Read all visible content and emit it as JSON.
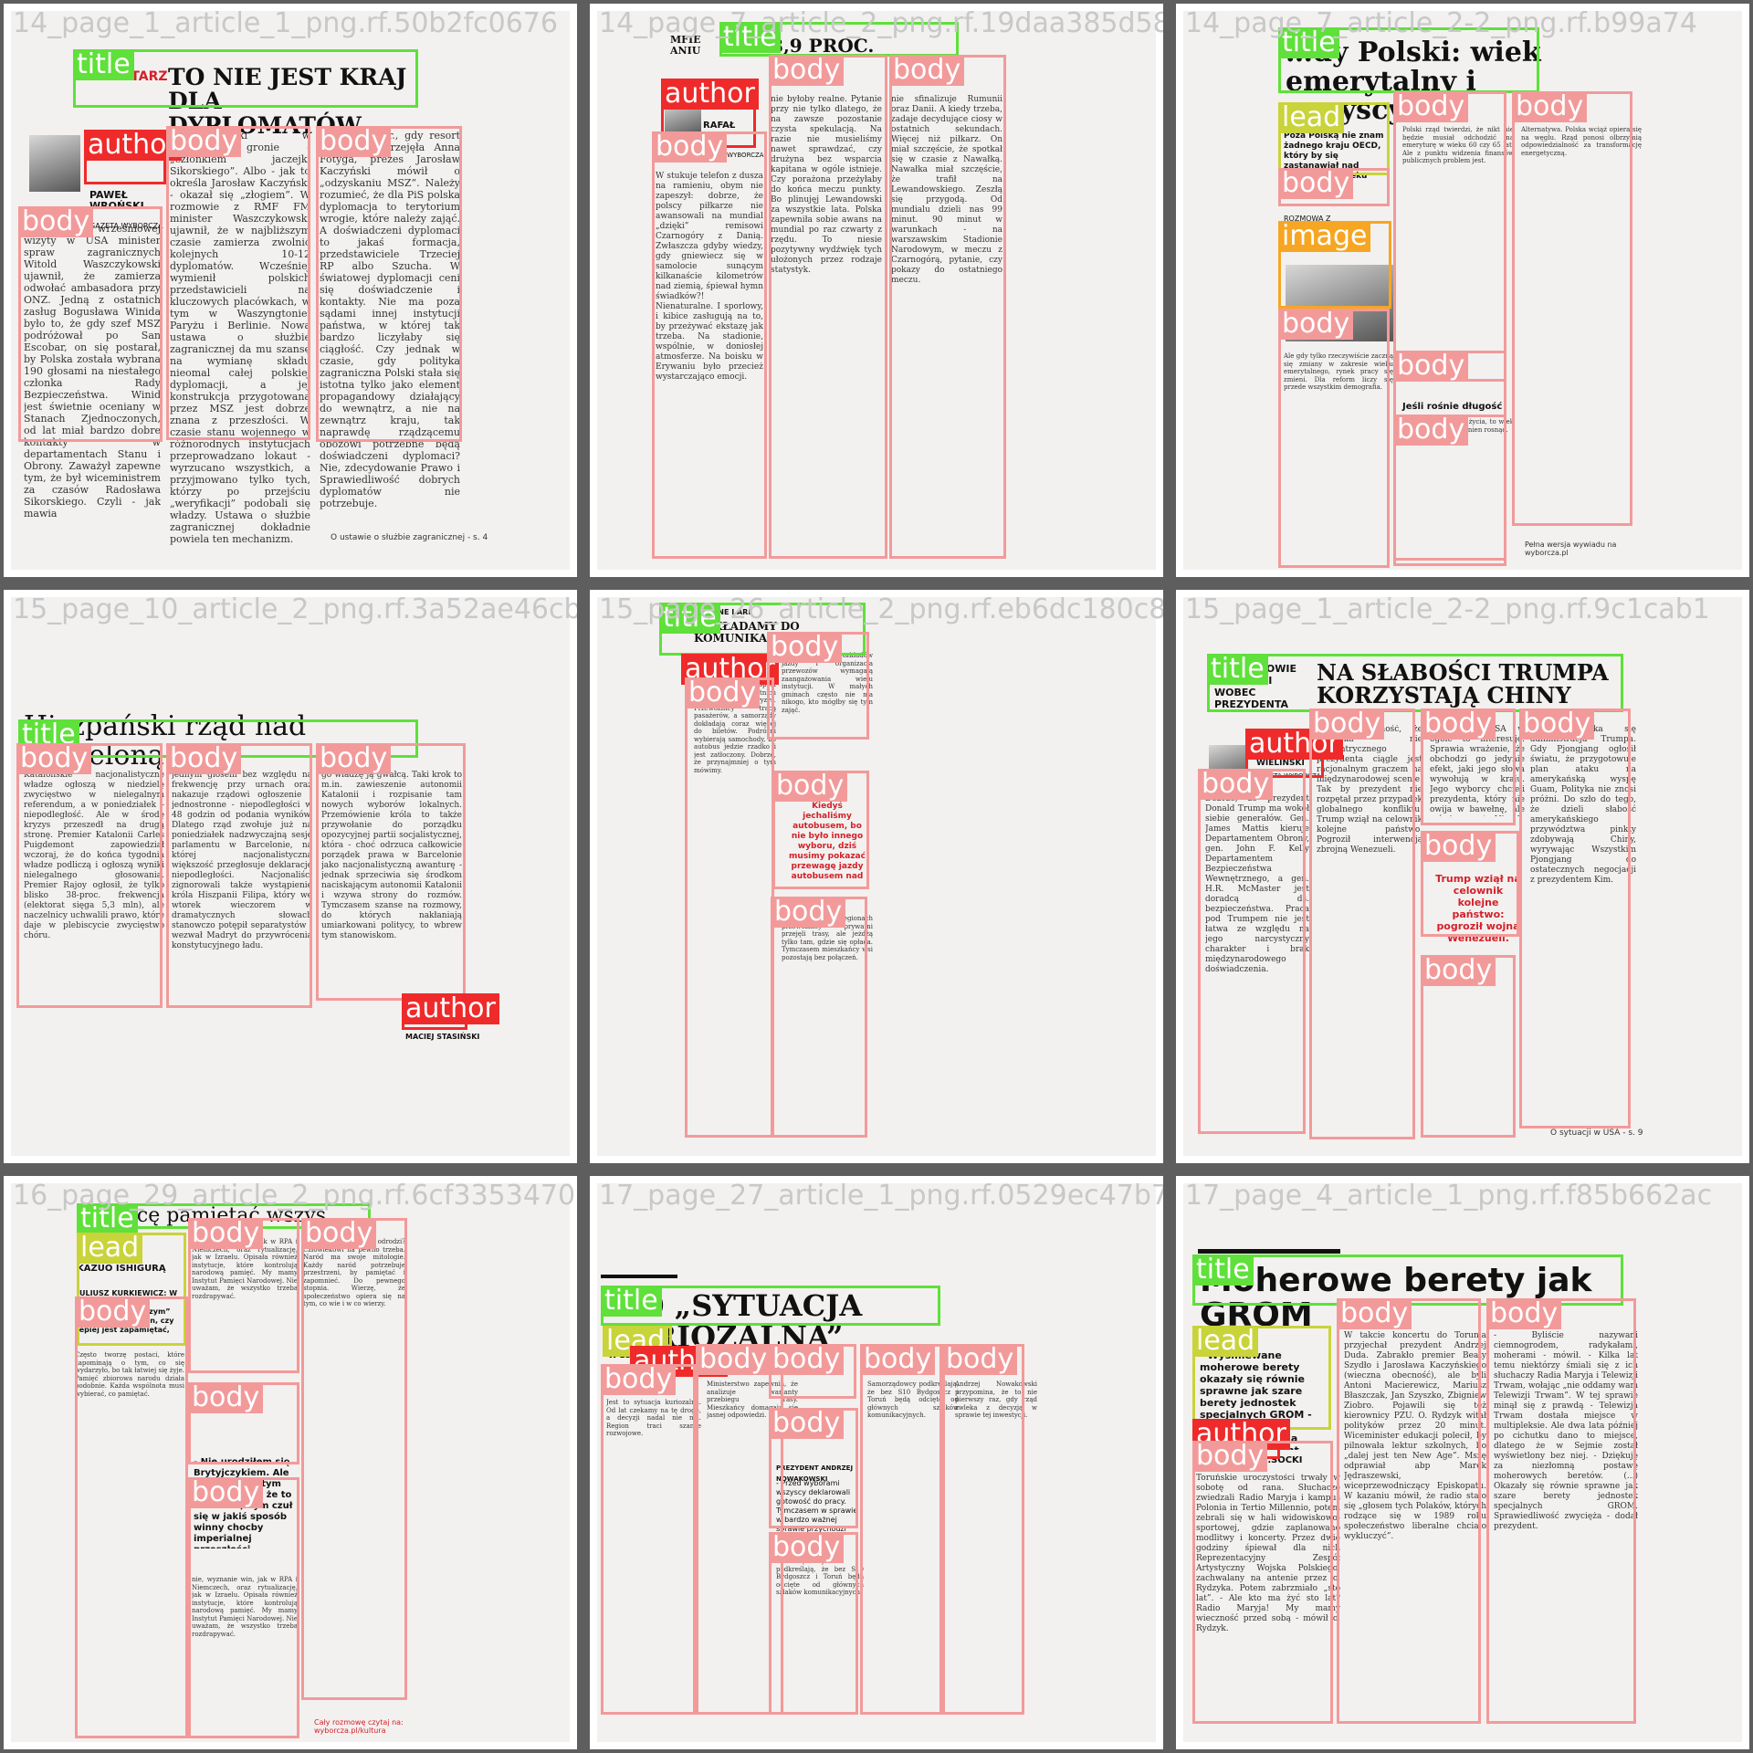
{
  "tiles": [
    {
      "label": "14_page_1_article_1_png.rf.50b2fc0676",
      "kicker": "KOMENTARZ",
      "headline": "TO NIE JEST KRAJ DLA DYPLOMATÓW",
      "author": "PAWEŁ WROŃSKI",
      "author_org": "GAZETA WYBORCZA",
      "body": [
        "W trakcie wrześniowej wizyty w USA minister spraw zagranicznych Witold Waszczykowski ujawnił, że zamierza odwołać ambasadora przy ONZ. Jedną z ostatnich zasług Bogusława Winida było to, że gdy szef MSZ podróżował po San Escobar, on się postarał, by Polska została wybrana 190 głosami na niestałego członka Rady Bezpieczeństwa. Winid jest świetnie oceniany w Stanach Zjednoczonych, od lat miał bardzo dobre kontakty w departamentach Stanu i Obrony. Zaważył zapewne tym, że był wiceministrem za czasów Radosława Sikorskiego. Czyli - jak mawia",
        "Waszczykowski w zaufanym gronie - „członkiem jaczejki Sikorskiego”. Albo - jak to określa Jarosław Kaczyński - okazał się „złogiem”. W rozmowie z RMF FM minister Waszczykowski ujawnił, że w najbliższym czasie zamierza zwolnić kolejnych 10-12 dyplomatów. Wcześniej wymienił polskich przedstawicieli na kluczowych placówkach, w tym w Waszyngtonie, Paryżu i Berlinie. Nowa ustawa o służbie zagranicznej da mu szansę na wymianę składu nieomal całej polskiej dyplomacji, a jej konstrukcja przygotowana przez MSZ jest dobrze znana z przeszłości. W czasie stanu wojennego w różnorodnych instytucjach przeprowadzano lokaut - wyrzucano wszystkich, a przyjmowano tylko tych, którzy po przejściu „weryfikacji” podobali się władzy. Ustawa o służbie zagranicznej dokładnie powiela ten mechanizm.",
        "Już w 2006 r., gdy resort dyplomacji przejęła Anna Fotyga, prezes Jarosław Kaczyński mówił o „odzyskaniu MSZ”. Należy rozumieć, że dla PiS polska dyplomacja to terytorium wrogie, które należy zająć. A doświadczeni dyplomaci to jakaś formacja, przedstawiciele Trzeciej RP albo Szucha. W światowej dyplomacji ceni się doświadczenie i kontakty. Nie ma poza sądami innej instytucji państwa, w której tak bardzo liczyłaby się ciągłość. Czy jednak w czasie, gdy polityka zagraniczna Polski stała się istotna tylko jako element propagandowy działający do wewnątrz, a nie na zewnątrz kraju, tak naprawdę rządzącemu obozowi potrzebne będą doświadczeni dyplomaci? Nie, zdecydowanie Prawo i Sprawiedliwość dobrych dyplomatów nie potrzebuje."
      ],
      "footer": "O ustawie o służbie zagranicznej - s. 4"
    },
    {
      "label": "14_page_7_article_2_png.rf.19daa385d58",
      "headline": "98,9 PROC.",
      "headline2": "MFIE ANIU",
      "author": "RAFAŁ TEC",
      "author_org": "GAZETA WYBORCZA",
      "body": [
        "W stukuje telefon z dusza na ramieniu, obym nie zapeszył: dobrze, że polscy piłkarze nie awansowali na mundial „dzięki” remisowi Czarnogóry z Danią. Zwłaszcza gdyby wiedzy, gdy gniewiecz się w samolocie sunącym kilkanaście kilometrów nad ziemią, śpiewał hymn świadków?! Nienaturalne. I sporlowy, i kibice zasługują na to, by przeżywać ekstazę jak trzeba. Na stadionie, wspólnie, w doniosłej atmosferze. Na boisku w Erywaniu było przecież wystarczająco emocji.",
        "nie byłoby realne. Pytanie przy nie tylko dlatego, że na zawsze pozostanie czysta spekulacją. Na razie nie musieliśmy nawet sprawdzać, czy drużyna bez wsparcia kapitana w ogóle istnieje. Czy porażona przeżyłaby do końca meczu punkty. Bo plinujęj Lewandowski za wszystkie lata. Polska zapewniła sobie awans na mundial po raz czwarty z rzędu. To niesie pozytywny wydźwięk tych ułożonych przez rodzaje statystyk.",
        "nie sfinalizuje Rumunii oraz Danii. A kiedy trzeba, zadaje decydujące ciosy w ostatnich sekundach. Więcej niż piłkarz. On miał szczęście, że spotkał się w czasie z Nawałką. Nawałka miał szczęście, że trafił na Lewandowskiego. Zeszłą się przygodą. Od mundialu dzieli nas 99 minut. 90 minut w warunkach - na warszawskim Stadionie Narodowym, w meczu z Czarnogórą, pytanie, czy pokazy do ostatniego meczu."
      ]
    },
    {
      "label": "14_page_7_article_2-2_png.rf.b99a74",
      "headline": "…dy Polski: wiek emerytalny i wszyscy",
      "lead": "Poza Polską nie znam żadnego kraju OECD, który by się zastanawiał nad obniżeniem wieku emerytalnego.",
      "interview_label": "ROZMOWA Z",
      "body": [
        "Polski rząd twierdzi, że nikt nie będzie musiał odchodzić na emeryturę w wieku 60 czy 65 lat. Ale z punktu widzenia finansów publicznych problem jest.",
        "Ale gdy tylko rzeczywiście zaczną się zmiany w zakresie wieku emerytalnego, rynek pracy się zmieni. Dla reform liczy się przede wszystkim demografia.",
        "Alternatywa. Polska wciąż opiera się na węglu. Rząd ponosi olbrzymią odpowiedzialność za transformację energetyczną.",
        "Jeśli rośnie długość życia, to wiek emerytalny też powinien rosnąć.",
        "Pełna wersja wywiadu na wyborcza.pl"
      ],
      "subhead": "Jeśli rośnie długość"
    },
    {
      "label": "15_page_10_article_2_png.rf.3a52ae46cb8",
      "headline": "Hiszpański rząd nad Barceloną",
      "author": "MACIEJ STASIŃSKI",
      "body": [
        "Katalońskie nacjonalistyczne władze ogłoszą w niedzielę zwycięstwo w nielegalnym referendum, a w poniedziałek - niepodległość. Ale w środę kryzys przeszedł na drugą stronę. Premier Katalonii Carles Puigdemont zapowiedział wczoraj, że do końca tygodnia władze podliczą i ogłoszą wyniki nielegalnego głosowania. Premier Rajoy ogłosił, że tylko blisko 38-proc. frekwencja (elektorat sięga 5,3 mln), ale naczelnicy uchwalili prawo, które daje w plebiscycie zwycięstwo chóru.",
        "jednym głosem bez względu na frekwencję przy urnach oraz nakazuje rządowi ogłoszenie - jednostronne - niepodległości w 48 godzin od podania wyników. Dlatego rząd zwołuje już na poniedziałek nadzwyczajną sesję parlamentu w Barcelonie, na której nacjonalistyczna większość przegłosuje deklarację niepodległości. Nacjonaliści zignorowali także wystąpienie króla Hiszpanii Filipa, który we wtorek wieczorem w dramatycznych słowach stanowczo potępił separatystów i wezwał Madryt do przywrócenia konstytucyjnego ładu.",
        "go władzę ją gwałcą. Taki krok to m.in. zawieszenie autonomii Katalonii i rozpisanie tam nowych wyborów lokalnych. Przemówienie króla to także przywołanie do porządku opozycyjnej partii socjalistycznej, która - choć odrzuca całkowicie porządek prawa w Barcelonie jako nacjonalistyczną awanturę - jednak sprzeciwia się środkom naciskającym autonomii Katalonii i wzywa strony do rozmów. Tymczasem szanse na rozmowy, do których nakłaniają umiarkowani politycy, to wbrew tym stanowiskom."
      ]
    },
    {
      "label": "15_page_26_article_2_png.rf.eb6dc180c8a",
      "headline": "DOKŁADAMY DO KOMUNIKA… I DOBR…",
      "kicker": "FONE I ARI",
      "pull": "Kiedyś jechaliśmy autobusem, bo nie było innego wyboru, dziś musimy pokazać przewagę jazdy autobusem nad",
      "body": [
        "Publiczny transport zbiorowy w ostatnich latach przeżywa kryzys. Przewoźnicy tracą pasażerów, a samorządy dokładają coraz więcej do biletów. Podróżni wybierają samochody, bo autobus jedzie rzadko i jest zatłoczony. Dobrze, że przynajmniej o tym mówimy.",
        "Przygotowanie rozkładów jazdy i organizacja przewozów wymagają zaangażowania wielu instytucji. W małych gminach często nie ma nikogo, kto mógłby się tym zająć.",
        "W niektórych regionach przewoźnicy prywatni przejęli trasy, ale jeżdżą tylko tam, gdzie się opłaca. Tymczasem mieszkańcy wsi pozostają bez połączeń."
      ]
    },
    {
      "label": "15_page_1_article_2-2_png.rf.9c1cab1",
      "kicker": "GENERAŁOWIE BEZRADNI WOBEC PREZYDENTA",
      "headline": "NA SŁABOŚCI TRUMPA KORZYSTAJĄ CHINY",
      "author": "BARTOSZ T. WIELIŃSKI",
      "author_org": "GAZETA WYBORCZA",
      "pull": "Trump wziął na celownik kolejne państwo: pogroził wojną Wenezueli.",
      "body": [
        "Dobrze, że prezydent Donald Trump ma wokół siebie generałów. Gen. James Mattis kieruje Departamentem Obrony, gen. John F. Kelly Departamentem Bezpieczeństwa Wewnętrznego, a gen. H.R. McMaster jest doradcą ds. bezpieczeństwa. Praca pod Trumpem nie jest łatwa ze względu na jego narcystyczny charakter i brak międzynarodowego doświadczenia.",
        "st mał pewność, że Ameryka nie ekscentrycznego prezydenta ciągle jest racjonalnym graczem na międzynarodowej scenie. Tak by prezydent nie rozpętał przez przypadek globalnego konfliktu. Trump wziął na celownik kolejne państwo. Pogroził interwencją zbrojną Wenezueli.",
        "prezydenta USA w ogóle to interesuje. Sprawia wrażenie, że obchodzi go jedynie efekt, jaki jego słowa wywołują w kraju. Jego wyborcy chcieli prezydenta, który nie owija w bawełnę, ale mówi wprost. Nie da się ukryć, że pogróżki pod adresem Korei Północnej Wenezueli - a w zasadzie krajem są tam nimi gróźba wojny.",
        "jakim boryka się administracja Trumpa. Gdy Pjongjang ogłosił światu, że przygotowuje plan ataku na amerykańską wyspę Guam, Polityka nie znosi próżni. Do szło do tego, że dzieli słabość amerykańskiego przywództwa pinkty zdobywają Chiny, wyrywając Wszystkim Pjongjang do ostatecznych negocjacji z prezydentem Kim."
      ],
      "footer": "O sytuacji w USA - s. 9"
    },
    {
      "label": "16_page_29_article_2_png.rf.6cf33534708",
      "headline": "…y chcę pamiętać wszys…",
      "lead_label": "ROZMOWA Z",
      "lead_name": "KAZUO ISHIGURĄ",
      "lead": "JULIUSZ KURKIEWICZ: W ostatniej książce „Pogrzebany olbrzym” zastanawia się pan, czy lepiej jest zapamiętać, czy zapomnieć. Wiadomość.",
      "pull": "- Nie urodziłem się Brytyjczykiem. Ale żyję długo w tym kraju i myślę, że to właściwe, bym czuł się w jakiś sposób winny chocby imperialnej przeszłości brytyjskiego.",
      "body": [
        "Często tworzę postaci, które zapominają o tym, co się wydarzyło, bo tak łatwiej się żyje. Pamięć zbiorowa narodu działa podobnie. Każda wspólnota musi wybierać, co pamiętać.",
        "nie, wyznanie win, jak w RPA i Niemczech, oraz rytualizację, jak w Izraelu. Opisała również instytucje, które kontrolują narodową pamięć. My mamy Instytut Pamięci Narodowej. Nie uważam, że wszystko trzeba rozdrapywać.",
        "Czy pamięć się odrodzi? Człowiekowi na pewno trzeba. Naród ma swoje mitologie. Każdy naród potrzebuje przestrzeni, by pamiętać i zapomnieć. Do pewnego stopnia. Wierzę, że społeczeństwo opiera się na tym, co wie i w co wierzy.",
        "Cały rozmowę czytaj na: wyborcza.pl/kultura"
      ]
    },
    {
      "label": "17_page_27_article_1_png.rf.0529ec47b7a",
      "headline": "S10 „SYTUACJA KURIOZALNA”",
      "lead": "W zeszłym tygodniu",
      "interview_label": "PREZYDENT ANDRZEJ NOWAKOWSKI",
      "interview_q": "- Przed wyborami wszyscy deklarowali gotowość do pracy. Tymczasem w sprawie w bardzo ważnej sprawie przychodzi dzisiaj pustka i",
      "body": [
        "Jest to sytuacja kuriozalna. Od lat czekamy na tę drogę, a decyzji nadal nie ma. Region traci szanse rozwojowe.",
        "Ministerstwo zapewnia, że analizuje warianty przebiegu trasy. Mieszkańcy domagają się jasnej odpowiedzi.",
        "Samorządowcy podkreślają, że bez S10 Bydgoszcz i Toruń będą odcięte od głównych szlaków komunikacyjnych.",
        "Andrzej Nowakowski przypomina, że to nie pierwszy raz, gdy rząd zwleka z decyzją w sprawie tej inwestycji."
      ]
    },
    {
      "label": "17_page_4_article_1_png.rf.f85b662ac",
      "headline": "Moherowe berety jak GROM",
      "lead": "- Wyśmiewane moherowe berety okazały się równie sprawne jak szare berety jednostek specjalnych GROM - mówił na 25. urodzinach Radia Maryja prezydent",
      "author": "…SOCKI",
      "body": [
        "Toruńskie uroczystości trwały w sobotę od rana. Słuchacze zwiedzali Radio Maryja i kampus Polonia in Tertio Millennio, potem zebrali się w hali widowiskowo-sportowej, gdzie zaplanowano modlitwy i koncerty. Przez dwie godziny śpiewał dla nich Reprezentacyjny Zespół Artystyczny Wojska Polskiego, zachwalany na antenie przez o. Rydzyka. Potem zabrzmiało „sto lat”. - Ale kto ma żyć sto lat? Radio Maryja! My mamy wieczność przed sobą - mówił o. Rydzyk.",
        "W takcie koncertu do Torunia przyjechał prezydent Andrzej Duda. Zabrakło premier Beaty Szydło i Jarosława Kaczyńskiego (wieczna obecność), ale byli Antoni Macierewicz, Mariusz Błaszczak, Jan Szyszko, Zbigniew Ziobro. Pojawili się też kierownicy PZU. O. Rydzyk witał polityków przez 20 minut. Wiceminister edukacji polecił, by pilnowała lektur szkolnych, bo „dalej jest ten New Age”. Mszę odprawiał abp Marek Jędraszewski, wiceprzewodniczący Episkopatu. W kazaniu mówił, że radio stało się „głosem tych Polaków, których rodzące się w 1989 roku społeczeństwo liberalne chciało wykluczyć”.",
        "- Byliście nazywani ciemnogrodem, radykałami, moherami - mówił. - Kilka lat temu niektórzy śmiali się z ich słuchaczy Radia Maryja i Telewizji Trwam, wołając „nie oddamy wam Telewizji Trwam”. W tej sprawie minął się z prawdą - Telewizja Trwam dostała miejsce w multipleksie. Ale dwa lata później po cichutku dano to miejsce, dlatego że w Sejmie został wyświetlony bez niej. - Dziękuję za niezłomną postawę moherowych beretów. (...) Okazały się równie sprawne jak szare berety jednostek specjalnych GROM. Sprawiedliwość zwycięża - dodał prezydent."
      ]
    }
  ],
  "tags": {
    "title": "title",
    "body": "body",
    "author": "author",
    "lead": "lead",
    "image": "image"
  },
  "colors": {
    "title": "#5fe03a",
    "body": "#f29a9a",
    "author": "#ef2a2a",
    "lead": "#c9d33a",
    "image": "#f6a623"
  }
}
